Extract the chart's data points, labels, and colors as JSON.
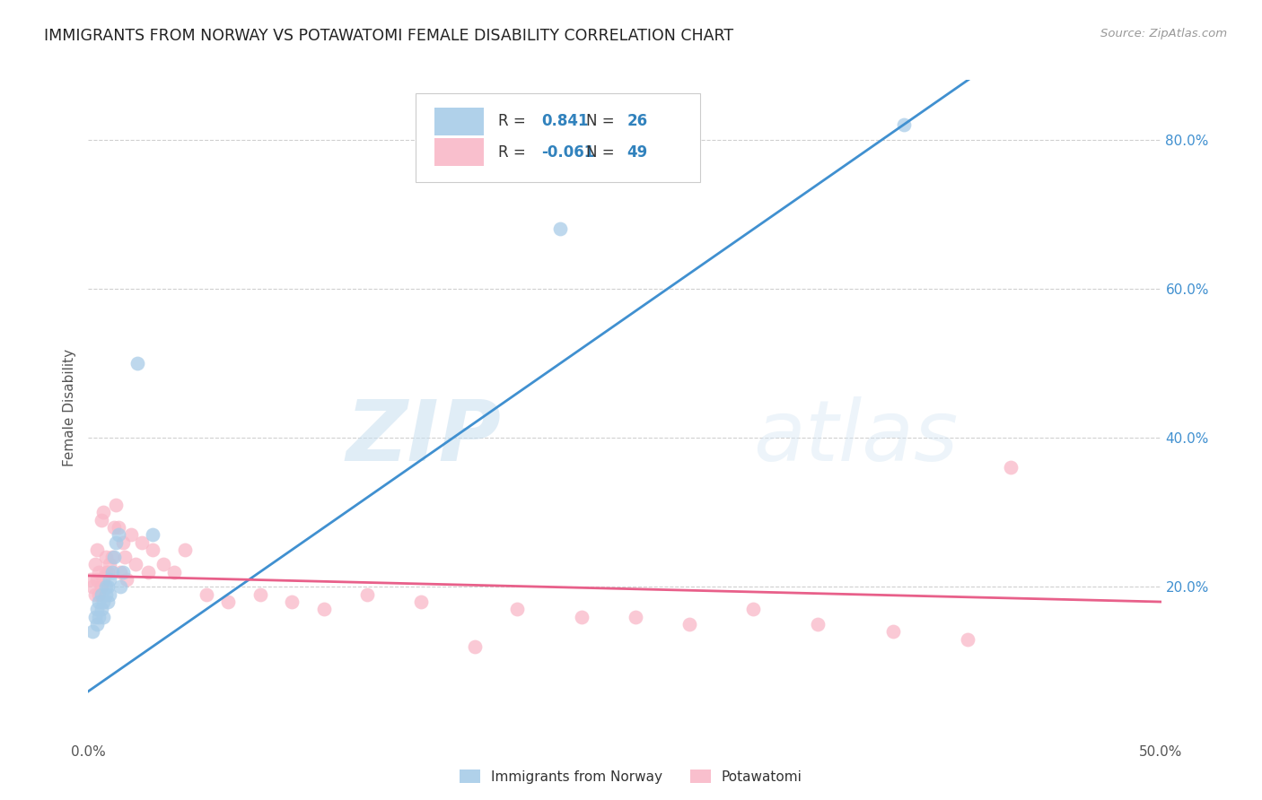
{
  "title": "IMMIGRANTS FROM NORWAY VS POTAWATOMI FEMALE DISABILITY CORRELATION CHART",
  "source": "Source: ZipAtlas.com",
  "ylabel_left": "Female Disability",
  "xlim": [
    0.0,
    0.5
  ],
  "ylim": [
    0.0,
    0.88
  ],
  "y_ticks_right": [
    0.2,
    0.4,
    0.6,
    0.8
  ],
  "y_tick_labels_right": [
    "20.0%",
    "40.0%",
    "60.0%",
    "80.0%"
  ],
  "norway_R": 0.841,
  "norway_N": 26,
  "potawatomi_R": -0.061,
  "potawatomi_N": 49,
  "norway_color": "#a8cce8",
  "potawatomi_color": "#f9b8c8",
  "norway_line_color": "#4090d0",
  "potawatomi_line_color": "#e8608a",
  "norway_x": [
    0.002,
    0.003,
    0.004,
    0.004,
    0.005,
    0.005,
    0.006,
    0.006,
    0.007,
    0.007,
    0.008,
    0.008,
    0.009,
    0.009,
    0.01,
    0.01,
    0.011,
    0.012,
    0.013,
    0.014,
    0.015,
    0.016,
    0.023,
    0.03,
    0.22,
    0.38
  ],
  "norway_y": [
    0.14,
    0.16,
    0.15,
    0.17,
    0.16,
    0.18,
    0.17,
    0.19,
    0.16,
    0.18,
    0.19,
    0.2,
    0.18,
    0.2,
    0.19,
    0.21,
    0.22,
    0.24,
    0.26,
    0.27,
    0.2,
    0.22,
    0.5,
    0.27,
    0.68,
    0.82
  ],
  "potawatomi_x": [
    0.001,
    0.002,
    0.003,
    0.003,
    0.004,
    0.004,
    0.005,
    0.005,
    0.006,
    0.006,
    0.007,
    0.007,
    0.008,
    0.008,
    0.009,
    0.01,
    0.011,
    0.012,
    0.013,
    0.014,
    0.015,
    0.016,
    0.017,
    0.018,
    0.02,
    0.022,
    0.025,
    0.028,
    0.03,
    0.035,
    0.04,
    0.045,
    0.055,
    0.065,
    0.08,
    0.095,
    0.11,
    0.13,
    0.155,
    0.18,
    0.2,
    0.23,
    0.255,
    0.28,
    0.31,
    0.34,
    0.375,
    0.41,
    0.43
  ],
  "potawatomi_y": [
    0.21,
    0.2,
    0.19,
    0.23,
    0.21,
    0.25,
    0.19,
    0.22,
    0.2,
    0.29,
    0.21,
    0.3,
    0.22,
    0.24,
    0.22,
    0.23,
    0.24,
    0.28,
    0.31,
    0.28,
    0.22,
    0.26,
    0.24,
    0.21,
    0.27,
    0.23,
    0.26,
    0.22,
    0.25,
    0.23,
    0.22,
    0.25,
    0.19,
    0.18,
    0.19,
    0.18,
    0.17,
    0.19,
    0.18,
    0.12,
    0.17,
    0.16,
    0.16,
    0.15,
    0.17,
    0.15,
    0.14,
    0.13,
    0.36
  ],
  "watermark_zip": "ZIP",
  "watermark_atlas": "atlas",
  "legend_norway_label": "Immigrants from Norway",
  "legend_potawatomi_label": "Potawatomi",
  "background_color": "#ffffff",
  "grid_color": "#d0d0d0",
  "norway_line_intercept": 0.06,
  "norway_line_slope": 2.0,
  "potawatomi_line_intercept": 0.215,
  "potawatomi_line_slope": -0.07
}
